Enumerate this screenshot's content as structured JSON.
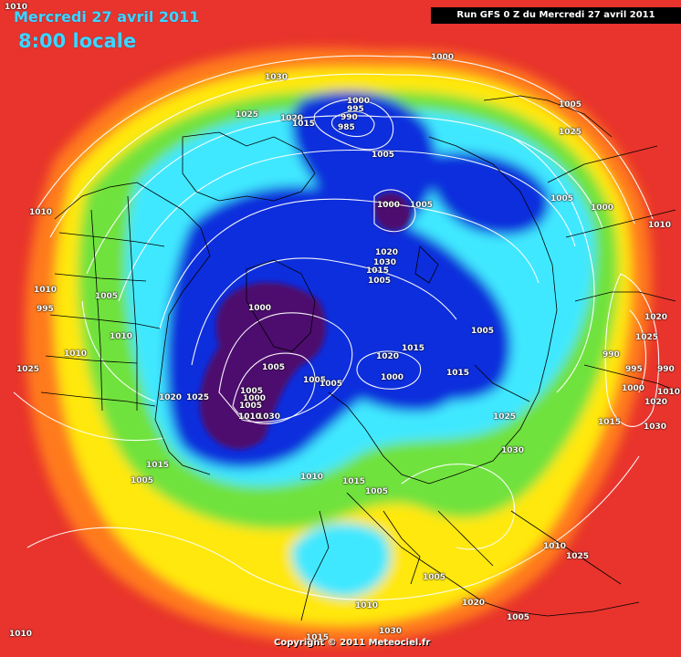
{
  "header": {
    "date": "Mercredi 27 avril 2011",
    "time": "8:00 locale",
    "run": "Run GFS 0 Z du Mercredi 27 avril 2011"
  },
  "footer": {
    "copyright": "Copyright © 2011 Meteociel.fr"
  },
  "colors": {
    "high": "#e8342c",
    "orange": "#ff7a1c",
    "yellow": "#ffe80a",
    "green": "#6fe23c",
    "cyan": "#41e8ff",
    "blue": "#0b2fdc",
    "deep_low": "#4d0d6e",
    "isobar": "#ffffff",
    "coast": "#000000"
  },
  "isobar_labels": [
    "1010",
    "1030",
    "1025",
    "1020",
    "1015",
    "1000",
    "995",
    "990",
    "985",
    "1005",
    "1000",
    "1005",
    "1025",
    "1005",
    "1000",
    "1010",
    "1010",
    "1010",
    "1005",
    "995",
    "1000",
    "1005",
    "1000",
    "1010",
    "1005",
    "1015",
    "1020",
    "1030",
    "1015",
    "1005",
    "1010",
    "1000",
    "1005",
    "1020",
    "1015",
    "1005",
    "1005",
    "1020",
    "1025",
    "1030",
    "1005",
    "1000",
    "1005",
    "1010",
    "1020",
    "1025",
    "990",
    "995",
    "990",
    "1000",
    "1020",
    "1015",
    "1030",
    "1025",
    "1030",
    "1015",
    "1005",
    "1015",
    "1005",
    "1010",
    "1010",
    "1005",
    "1020",
    "1010",
    "1005",
    "1010",
    "1015",
    "1030",
    "1025",
    "1025",
    "1010",
    "1020",
    "1005"
  ]
}
